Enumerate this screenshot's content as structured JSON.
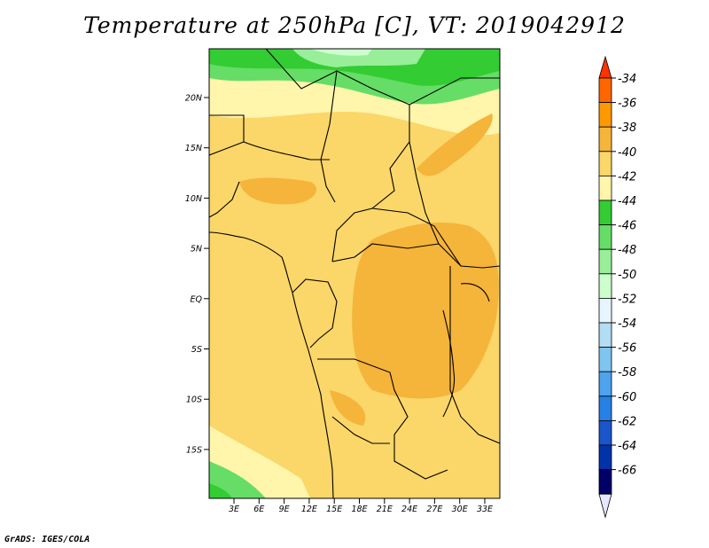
{
  "title": "Temperature at 250hPa [C], VT: 2019042912",
  "footer": "GrADS: IGES/COLA",
  "lat_labels": [
    "20N",
    "15N",
    "10N",
    "5N",
    "EQ",
    "5S",
    "10S",
    "15S"
  ],
  "lon_labels": [
    "3E",
    "6E",
    "9E",
    "12E",
    "15E",
    "18E",
    "21E",
    "24E",
    "27E",
    "30E",
    "33E"
  ],
  "colorbar": {
    "labels": [
      "-34",
      "-36",
      "-38",
      "-40",
      "-42",
      "-44",
      "-46",
      "-48",
      "-50",
      "-52",
      "-54",
      "-56",
      "-58",
      "-60",
      "-62",
      "-64",
      "-66"
    ],
    "colors": [
      "#ff3300",
      "#ff6600",
      "#ff9900",
      "#f5b43a",
      "#fbd669",
      "#fff5ab",
      "#33cc33",
      "#66dd66",
      "#99ee99",
      "#ccffcc",
      "#e6f5ff",
      "#b3dcf5",
      "#80c4f0",
      "#4da3ee",
      "#2680e5",
      "#1a55cc",
      "#0033aa",
      "#000066",
      "#e6e6ff"
    ]
  }
}
